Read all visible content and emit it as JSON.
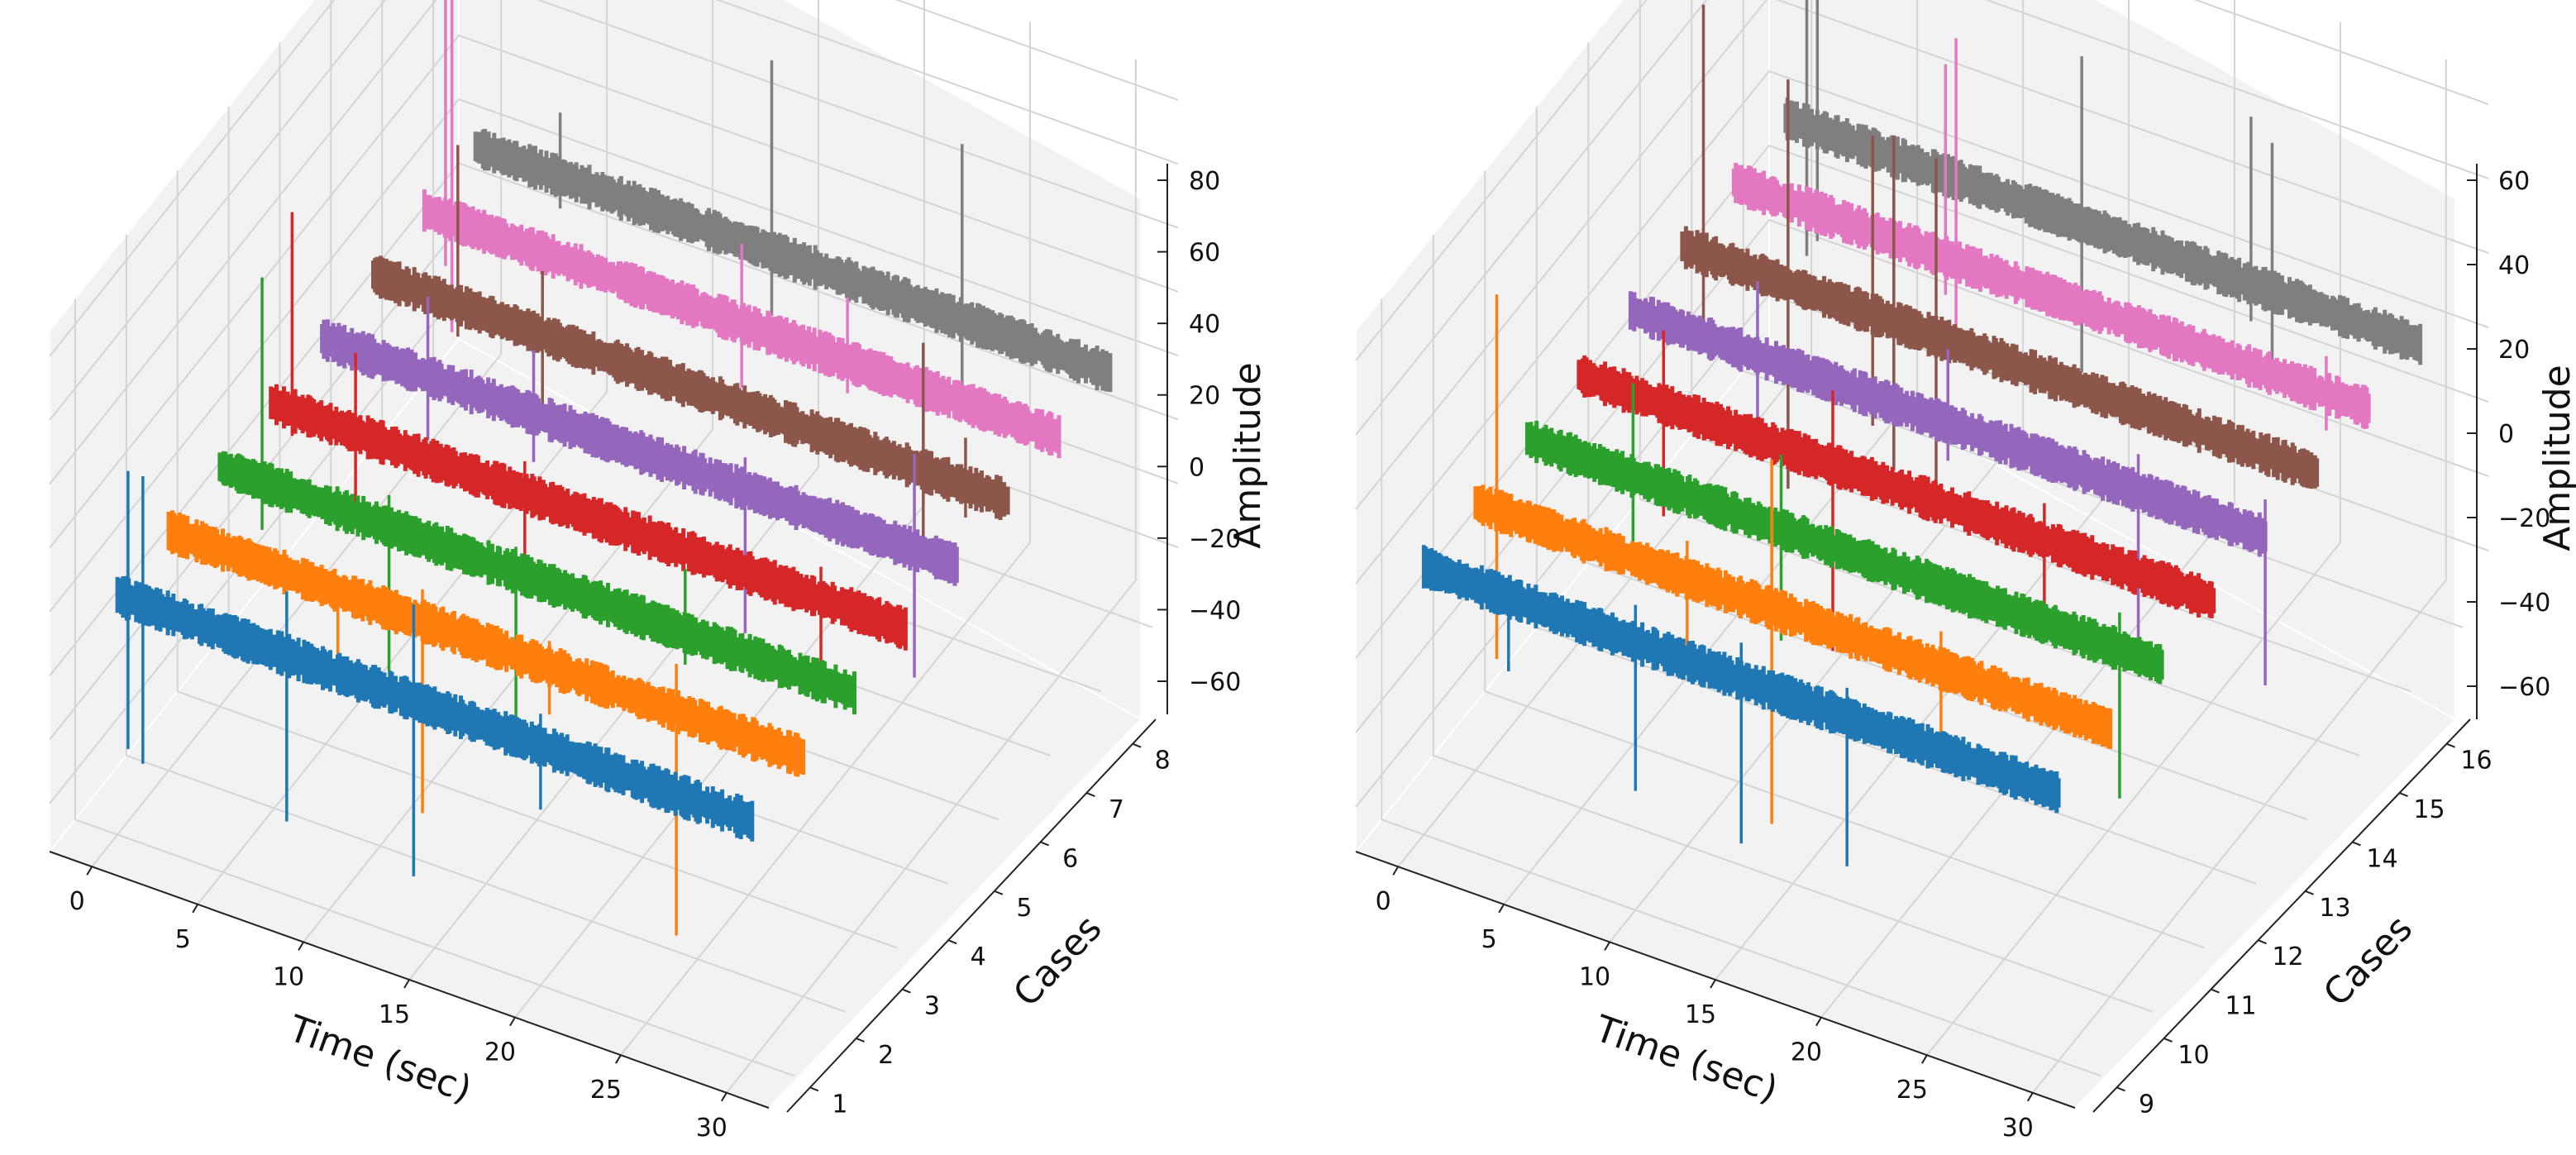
{
  "chart_data": [
    {
      "type": "line",
      "projection": "3d",
      "xlabel": "Time (sec)",
      "ylabel": "Cases",
      "zlabel": "Amplitude",
      "xlim": [
        -2,
        32
      ],
      "ylim": [
        0.5,
        8.5
      ],
      "zlim": [
        -75,
        88
      ],
      "xticks": [
        "0",
        "5",
        "10",
        "15",
        "20",
        "25",
        "30"
      ],
      "yticks": [
        "1",
        "2",
        "3",
        "4",
        "5",
        "6",
        "7",
        "8"
      ],
      "zticks": [
        "−60",
        "−40",
        "−20",
        "0",
        "20",
        "40",
        "60",
        "80"
      ],
      "x_range": [
        0,
        30
      ],
      "noise_amplitude": 7,
      "series": [
        {
          "name": "1",
          "case": 1,
          "color": "#1f77b4",
          "spikes": [
            [
              0.5,
              40,
              -47
            ],
            [
              1.2,
              40,
              -50
            ],
            [
              8,
              20,
              -52
            ],
            [
              14,
              30,
              -55
            ],
            [
              20,
              10,
              -20
            ]
          ]
        },
        {
          "name": "2",
          "case": 2,
          "color": "#ff7f0e",
          "spikes": [
            [
              12,
              10,
              -60
            ],
            [
              24,
              15,
              -70
            ],
            [
              8,
              5,
              -30
            ],
            [
              18,
              8,
              -15
            ]
          ]
        },
        {
          "name": "3",
          "case": 3,
          "color": "#2ca02c",
          "spikes": [
            [
              2,
              64,
              -15
            ],
            [
              8,
              10,
              -45
            ],
            [
              14,
              8,
              -55
            ],
            [
              22,
              20,
              -10
            ]
          ]
        },
        {
          "name": "4",
          "case": 4,
          "color": "#d62728",
          "spikes": [
            [
              1,
              62,
              -8
            ],
            [
              4,
              25,
              -30
            ],
            [
              12,
              10,
              -20
            ],
            [
              26,
              10,
              -30
            ]
          ]
        },
        {
          "name": "5",
          "case": 5,
          "color": "#9467bd",
          "spikes": [
            [
              5,
              25,
              -20
            ],
            [
              10,
              20,
              -15
            ],
            [
              20,
              10,
              -45
            ],
            [
              28,
              30,
              -40
            ]
          ]
        },
        {
          "name": "6",
          "case": 6,
          "color": "#8c564b",
          "spikes": [
            [
              4,
              50,
              -10
            ],
            [
              8,
              20,
              -25
            ],
            [
              26,
              40,
              -30
            ],
            [
              28,
              15,
              -10
            ]
          ]
        },
        {
          "name": "7",
          "case": 7,
          "color": "#e377c2",
          "spikes": [
            [
              1,
              80,
              -15
            ],
            [
              1.3,
              84,
              -35
            ],
            [
              15,
              25,
              -20
            ],
            [
              20,
              20,
              -10
            ]
          ]
        },
        {
          "name": "8",
          "case": 8,
          "color": "#7f7f7f",
          "spikes": [
            [
              14,
              60,
              -20
            ],
            [
              23,
              55,
              -22
            ],
            [
              4,
              20,
              -10
            ]
          ]
        }
      ]
    },
    {
      "type": "line",
      "projection": "3d",
      "xlabel": "Time (sec)",
      "ylabel": "Cases",
      "zlabel": "Amplitude",
      "xlim": [
        -2,
        32
      ],
      "ylim": [
        8.5,
        16.5
      ],
      "zlim": [
        -72,
        68
      ],
      "xticks": [
        "0",
        "5",
        "10",
        "15",
        "20",
        "25",
        "30"
      ],
      "yticks": [
        "9",
        "10",
        "11",
        "12",
        "13",
        "14",
        "15",
        "16"
      ],
      "zticks": [
        "−60",
        "−40",
        "−20",
        "0",
        "20",
        "40",
        "60"
      ],
      "x_range": [
        0,
        30
      ],
      "noise_amplitude": 6,
      "series": [
        {
          "name": "9",
          "case": 9,
          "color": "#1f77b4",
          "spikes": [
            [
              10,
              10,
              -40
            ],
            [
              15,
              10,
              -44
            ],
            [
              20,
              8,
              -40
            ],
            [
              4,
              5,
              -20
            ]
          ]
        },
        {
          "name": "10",
          "case": 10,
          "color": "#ff7f0e",
          "spikes": [
            [
              1,
              58,
              -40
            ],
            [
              14,
              40,
              -58
            ],
            [
              10,
              10,
              -20
            ],
            [
              22,
              10,
              -20
            ]
          ]
        },
        {
          "name": "11",
          "case": 11,
          "color": "#2ca02c",
          "spikes": [
            [
              5,
              25,
              -20
            ],
            [
              12,
              20,
              -30
            ],
            [
              28,
              10,
              -40
            ]
          ]
        },
        {
          "name": "12",
          "case": 12,
          "color": "#d62728",
          "spikes": [
            [
              4,
              20,
              -30
            ],
            [
              12,
              20,
              -50
            ],
            [
              22,
              10,
              -20
            ]
          ]
        },
        {
          "name": "13",
          "case": 13,
          "color": "#9467bd",
          "spikes": [
            [
              6,
              20,
              -20
            ],
            [
              15,
              20,
              -10
            ],
            [
              24,
              10,
              -40
            ],
            [
              30,
              10,
              -40
            ]
          ]
        },
        {
          "name": "14",
          "case": 14,
          "color": "#8c564b",
          "spikes": [
            [
              1,
              67,
              -20
            ],
            [
              5,
              55,
              -55
            ],
            [
              9,
              48,
              -30
            ],
            [
              10,
              50,
              -40
            ],
            [
              12,
              48,
              -42
            ]
          ]
        },
        {
          "name": "15",
          "case": 15,
          "color": "#e377c2",
          "spikes": [
            [
              10,
              52,
              -10
            ],
            [
              10.5,
              60,
              -20
            ],
            [
              28,
              10,
              -10
            ]
          ]
        },
        {
          "name": "16",
          "case": 16,
          "color": "#7f7f7f",
          "spikes": [
            [
              1,
              75,
              -35
            ],
            [
              1.5,
              70,
              -30
            ],
            [
              14,
              45,
              -40
            ],
            [
              22,
              45,
              -10
            ],
            [
              23,
              40,
              -20
            ]
          ]
        }
      ]
    }
  ]
}
